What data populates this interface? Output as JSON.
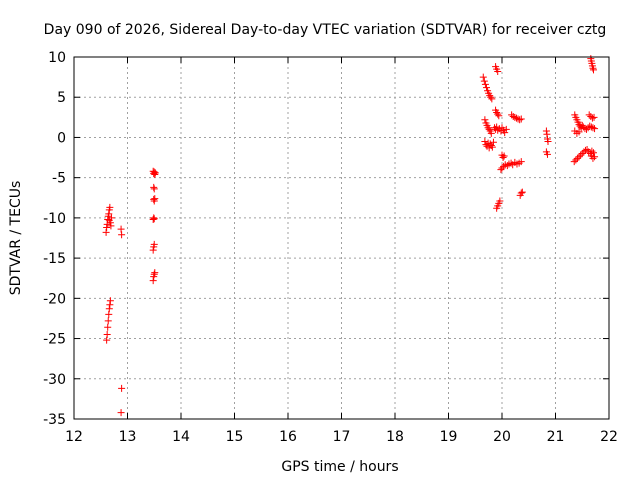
{
  "chart_data": {
    "type": "scatter",
    "title": "Day 090 of 2026, Sidereal Day-to-day VTEC variation (SDTVAR) for receiver cztg",
    "xlabel": "GPS time / hours",
    "ylabel": "SDTVAR / TECUs",
    "xlim": [
      12,
      22
    ],
    "ylim": [
      -35,
      10
    ],
    "xticks": [
      12,
      13,
      14,
      15,
      16,
      17,
      18,
      19,
      20,
      21,
      22
    ],
    "yticks": [
      10,
      5,
      0,
      -5,
      -10,
      -15,
      -20,
      -25,
      -30,
      -35
    ],
    "grid": true,
    "marker": "+",
    "color": "#ff0000",
    "series": [
      {
        "name": "SDTVAR",
        "points": [
          [
            12.6,
            -11.8
          ],
          [
            12.61,
            -11.2
          ],
          [
            12.62,
            -10.8
          ],
          [
            12.63,
            -10.2
          ],
          [
            12.64,
            -9.8
          ],
          [
            12.65,
            -9.5
          ],
          [
            12.66,
            -9.0
          ],
          [
            12.67,
            -8.7
          ],
          [
            12.66,
            -10.3
          ],
          [
            12.68,
            -10.6
          ],
          [
            12.69,
            -11.0
          ],
          [
            12.7,
            -10.0
          ],
          [
            12.61,
            -25.2
          ],
          [
            12.62,
            -24.5
          ],
          [
            12.63,
            -23.6
          ],
          [
            12.64,
            -22.8
          ],
          [
            12.65,
            -22.0
          ],
          [
            12.66,
            -21.3
          ],
          [
            12.67,
            -20.8
          ],
          [
            12.68,
            -20.3
          ],
          [
            12.88,
            -11.4
          ],
          [
            12.89,
            -12.1
          ],
          [
            12.89,
            -31.2
          ],
          [
            12.88,
            -34.2
          ],
          [
            13.48,
            -4.2
          ],
          [
            13.49,
            -4.5
          ],
          [
            13.5,
            -4.3
          ],
          [
            13.51,
            -4.6
          ],
          [
            13.52,
            -4.4
          ],
          [
            13.49,
            -6.2
          ],
          [
            13.5,
            -6.4
          ],
          [
            13.49,
            -7.7
          ],
          [
            13.5,
            -7.9
          ],
          [
            13.51,
            -7.6
          ],
          [
            13.48,
            -10.2
          ],
          [
            13.49,
            -10.0
          ],
          [
            13.5,
            -10.1
          ],
          [
            13.48,
            -14.0
          ],
          [
            13.49,
            -13.6
          ],
          [
            13.5,
            -13.3
          ],
          [
            13.48,
            -17.8
          ],
          [
            13.49,
            -17.3
          ],
          [
            13.5,
            -17.0
          ],
          [
            13.51,
            -16.8
          ],
          [
            19.65,
            7.5
          ],
          [
            19.67,
            7.0
          ],
          [
            19.69,
            6.6
          ],
          [
            19.71,
            6.2
          ],
          [
            19.73,
            5.8
          ],
          [
            19.75,
            5.5
          ],
          [
            19.77,
            5.2
          ],
          [
            19.79,
            5.0
          ],
          [
            19.81,
            4.8
          ],
          [
            19.68,
            2.2
          ],
          [
            19.7,
            1.8
          ],
          [
            19.72,
            1.5
          ],
          [
            19.74,
            1.2
          ],
          [
            19.76,
            1.0
          ],
          [
            19.78,
            0.8
          ],
          [
            19.8,
            0.5
          ],
          [
            19.68,
            -0.5
          ],
          [
            19.7,
            -0.9
          ],
          [
            19.72,
            -1.1
          ],
          [
            19.74,
            -0.7
          ],
          [
            19.76,
            -1.3
          ],
          [
            19.78,
            -0.8
          ],
          [
            19.8,
            -1.0
          ],
          [
            19.82,
            -1.2
          ],
          [
            19.84,
            -0.6
          ],
          [
            19.88,
            8.8
          ],
          [
            19.9,
            8.5
          ],
          [
            19.92,
            8.2
          ],
          [
            19.88,
            3.4
          ],
          [
            19.9,
            3.1
          ],
          [
            19.92,
            2.9
          ],
          [
            19.94,
            2.7
          ],
          [
            19.86,
            1.2
          ],
          [
            19.88,
            1.0
          ],
          [
            19.9,
            1.3
          ],
          [
            19.92,
            0.9
          ],
          [
            19.95,
            1.1
          ],
          [
            19.98,
            0.8
          ],
          [
            20.0,
            1.2
          ],
          [
            20.03,
            0.9
          ],
          [
            20.05,
            0.6
          ],
          [
            20.08,
            1.0
          ],
          [
            19.9,
            -8.8
          ],
          [
            19.92,
            -8.5
          ],
          [
            19.94,
            -8.2
          ],
          [
            19.96,
            -7.9
          ],
          [
            20.0,
            -2.2
          ],
          [
            20.02,
            -2.5
          ],
          [
            20.04,
            -2.3
          ],
          [
            19.98,
            -4.0
          ],
          [
            20.0,
            -3.8
          ],
          [
            20.03,
            -3.6
          ],
          [
            20.06,
            -3.4
          ],
          [
            20.1,
            -3.5
          ],
          [
            20.13,
            -3.3
          ],
          [
            20.17,
            -3.2
          ],
          [
            20.2,
            -3.4
          ],
          [
            20.24,
            -3.1
          ],
          [
            20.28,
            -3.3
          ],
          [
            20.32,
            -3.2
          ],
          [
            20.36,
            -3.0
          ],
          [
            20.18,
            2.8
          ],
          [
            20.21,
            2.6
          ],
          [
            20.24,
            2.5
          ],
          [
            20.27,
            2.4
          ],
          [
            20.3,
            2.3
          ],
          [
            20.33,
            2.2
          ],
          [
            20.36,
            2.3
          ],
          [
            20.34,
            -7.2
          ],
          [
            20.36,
            -6.9
          ],
          [
            20.38,
            -6.8
          ],
          [
            20.83,
            0.8
          ],
          [
            20.84,
            0.4
          ],
          [
            20.85,
            -0.2
          ],
          [
            20.86,
            -0.5
          ],
          [
            20.83,
            -1.8
          ],
          [
            20.85,
            -2.1
          ],
          [
            21.35,
            -3.0
          ],
          [
            21.38,
            -2.8
          ],
          [
            21.41,
            -2.6
          ],
          [
            21.44,
            -2.4
          ],
          [
            21.47,
            -2.2
          ],
          [
            21.5,
            -2.0
          ],
          [
            21.53,
            -1.8
          ],
          [
            21.56,
            -1.6
          ],
          [
            21.59,
            -1.5
          ],
          [
            21.62,
            -1.8
          ],
          [
            21.65,
            -2.0
          ],
          [
            21.68,
            -1.7
          ],
          [
            21.71,
            -1.9
          ],
          [
            21.36,
            2.8
          ],
          [
            21.38,
            2.5
          ],
          [
            21.4,
            2.2
          ],
          [
            21.42,
            1.9
          ],
          [
            21.44,
            1.6
          ],
          [
            21.46,
            1.4
          ],
          [
            21.48,
            1.2
          ],
          [
            21.5,
            1.5
          ],
          [
            21.52,
            1.3
          ],
          [
            21.55,
            1.1
          ],
          [
            21.58,
            1.0
          ],
          [
            21.61,
            1.2
          ],
          [
            21.64,
            1.4
          ],
          [
            21.36,
            0.8
          ],
          [
            21.4,
            0.5
          ],
          [
            21.44,
            0.7
          ],
          [
            21.63,
            2.8
          ],
          [
            21.66,
            2.6
          ],
          [
            21.69,
            2.4
          ],
          [
            21.72,
            2.5
          ],
          [
            21.67,
            1.3
          ],
          [
            21.7,
            1.2
          ],
          [
            21.73,
            1.1
          ],
          [
            21.66,
            9.8
          ],
          [
            21.67,
            9.5
          ],
          [
            21.68,
            9.2
          ],
          [
            21.69,
            8.9
          ],
          [
            21.7,
            8.6
          ],
          [
            21.71,
            8.4
          ],
          [
            21.67,
            -2.3
          ],
          [
            21.7,
            -2.6
          ],
          [
            21.73,
            -2.4
          ]
        ]
      }
    ]
  }
}
